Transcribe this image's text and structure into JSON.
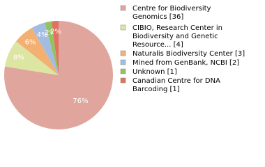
{
  "chart_data": {
    "type": "pie",
    "categories": [
      [
        "Centre for Biodiversity",
        "Genomics [36]"
      ],
      [
        "CIBIO, Research Center in",
        "Biodiversity and Genetic",
        "Resource... [4]"
      ],
      [
        "Naturalis Biodiversity Center [3]"
      ],
      [
        "Mined from GenBank, NCBI [2]"
      ],
      [
        "Unknown [1]"
      ],
      [
        "Canadian Centre for DNA",
        "Barcoding [1]"
      ]
    ],
    "values": [
      76,
      8,
      6,
      4,
      2,
      2
    ],
    "value_labels": [
      "76%",
      "8%",
      "6%",
      "4%",
      "2%",
      "2%"
    ],
    "colors": [
      "#e0a59d",
      "#dde5a2",
      "#f2b173",
      "#a3bde2",
      "#93c263",
      "#e0725f"
    ]
  }
}
